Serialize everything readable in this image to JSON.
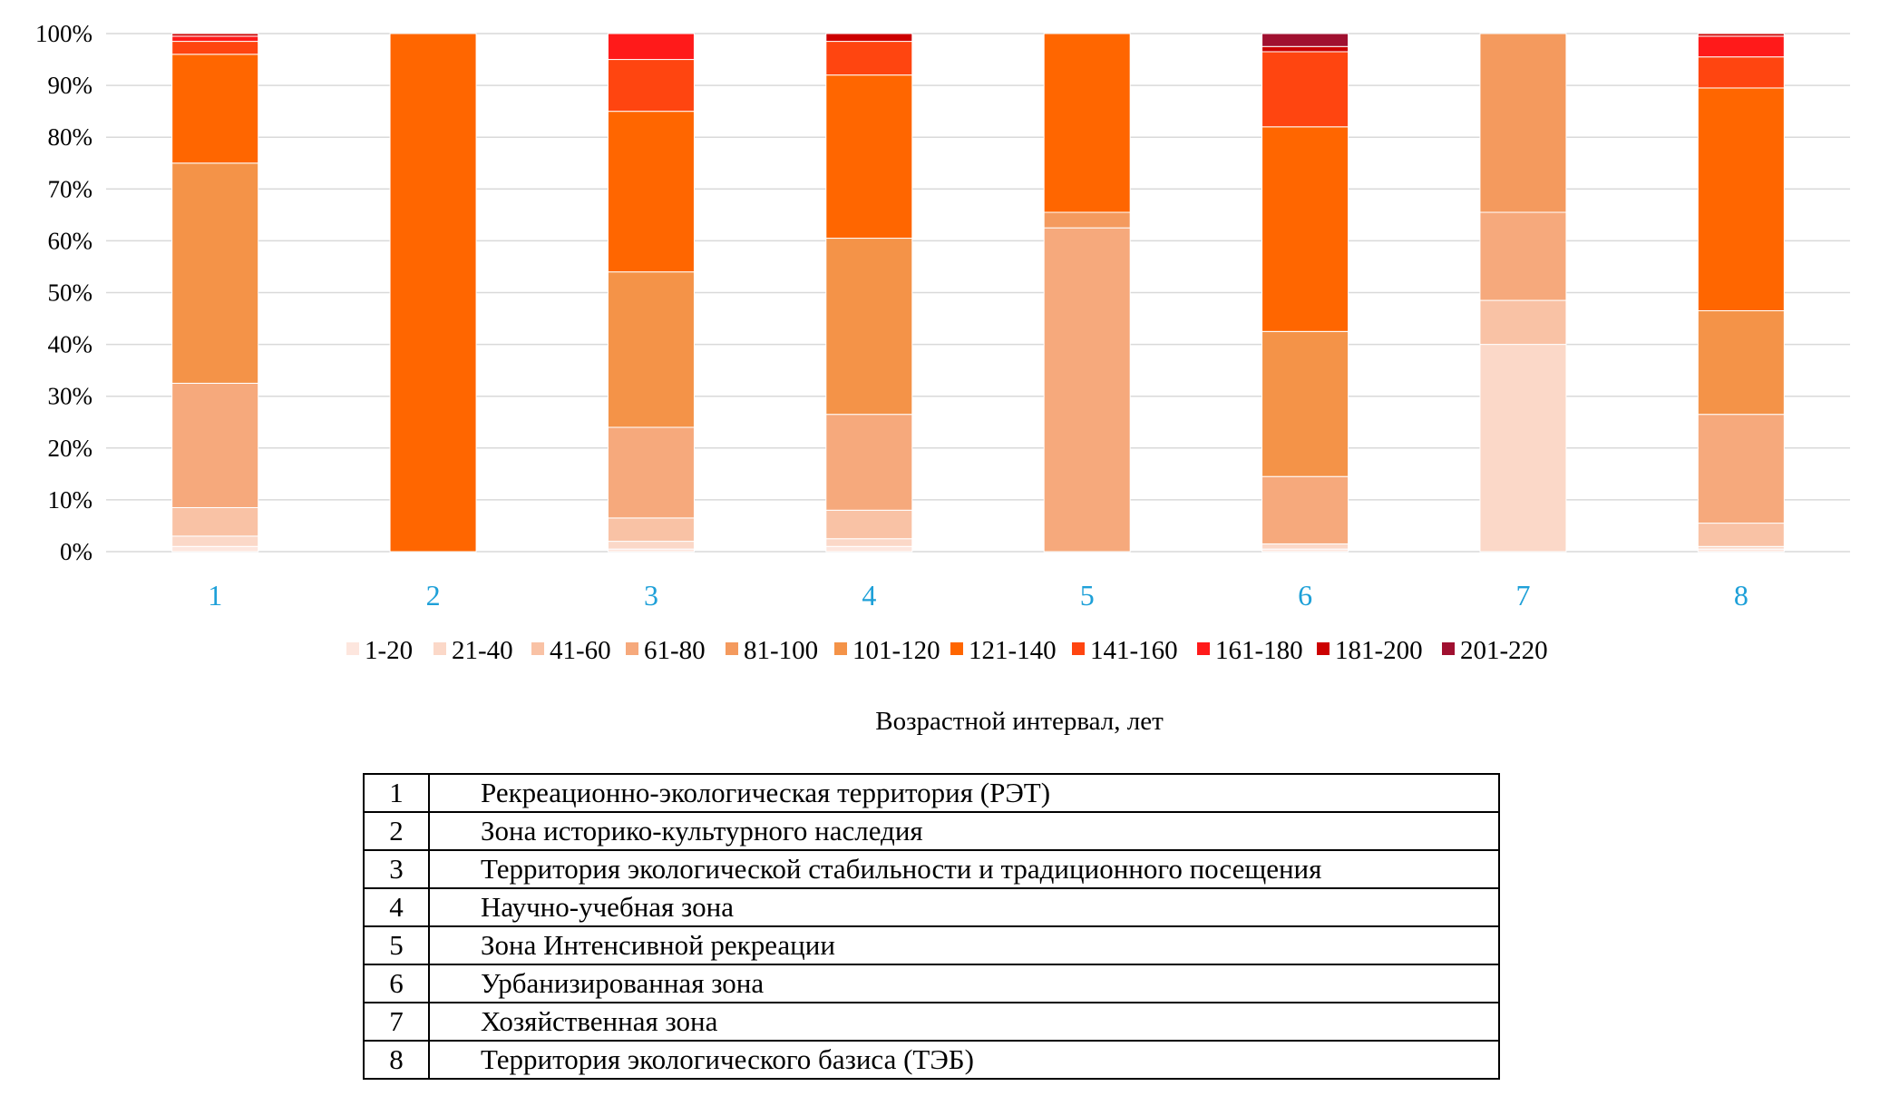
{
  "chart_data": {
    "type": "bar",
    "stacked": true,
    "normalized": true,
    "title": "",
    "xlabel": "Возрастной интервал, лет",
    "ylabel": "",
    "ylim": [
      0,
      100
    ],
    "yticks": [
      "0%",
      "10%",
      "20%",
      "30%",
      "40%",
      "50%",
      "60%",
      "70%",
      "80%",
      "90%",
      "100%"
    ],
    "grid": true,
    "legend_position": "bottom",
    "categories": [
      "1",
      "2",
      "3",
      "4",
      "5",
      "6",
      "7",
      "8"
    ],
    "series": [
      {
        "name": "1-20",
        "color": "#fde6de",
        "values": [
          1,
          0,
          0.5,
          1,
          0,
          0.5,
          0,
          0.5
        ]
      },
      {
        "name": "21-40",
        "color": "#fbd8c8",
        "values": [
          2,
          0,
          1.5,
          1.5,
          0,
          1,
          40,
          0.5
        ]
      },
      {
        "name": "41-60",
        "color": "#f9c2a5",
        "values": [
          5.5,
          0,
          4.5,
          5.5,
          0,
          0,
          8.5,
          4.5
        ]
      },
      {
        "name": "61-80",
        "color": "#f6a97c",
        "values": [
          24,
          0,
          17.5,
          18.5,
          62.5,
          13,
          17,
          21
        ]
      },
      {
        "name": "81-100",
        "color": "#f49a5e",
        "values": [
          0,
          0,
          0,
          0,
          3,
          0,
          34.5,
          0
        ]
      },
      {
        "name": "101-120",
        "color": "#f49348",
        "values": [
          42.5,
          0,
          30,
          34,
          0,
          28,
          0,
          20
        ]
      },
      {
        "name": "121-140",
        "color": "#ff6600",
        "values": [
          21,
          100,
          31,
          31.5,
          34.5,
          39.5,
          0,
          43
        ]
      },
      {
        "name": "141-160",
        "color": "#ff4510",
        "values": [
          2.5,
          0,
          10,
          6.5,
          0,
          14.5,
          0,
          6
        ]
      },
      {
        "name": "161-180",
        "color": "#ff1a1a",
        "values": [
          1,
          0,
          5,
          0,
          0,
          0,
          0,
          4
        ]
      },
      {
        "name": "181-200",
        "color": "#cc0000",
        "values": [
          0.5,
          0,
          0,
          1.5,
          0,
          1,
          0,
          0.5
        ]
      },
      {
        "name": "201-220",
        "color": "#a01030",
        "values": [
          0,
          0,
          0,
          0,
          0,
          2.5,
          0,
          0
        ]
      }
    ]
  },
  "zones_table": [
    {
      "num": "1",
      "name": "Рекреационно-экологическая территория (РЭТ)"
    },
    {
      "num": "2",
      "name": "Зона историко-культурного наследия"
    },
    {
      "num": "3",
      "name": "Территория экологической стабильности и традиционного посещения"
    },
    {
      "num": "4",
      "name": "Научно-учебная зона"
    },
    {
      "num": "5",
      "name": "Зона Интенсивной рекреации"
    },
    {
      "num": "6",
      "name": "Урбанизированная зона"
    },
    {
      "num": "7",
      "name": "Хозяйственная зона"
    },
    {
      "num": "8",
      "name": "Территория экологического базиса (ТЭБ)"
    }
  ],
  "colors": {
    "axis_tick": "#1ea0d8",
    "grid": "#d9d9d9"
  }
}
